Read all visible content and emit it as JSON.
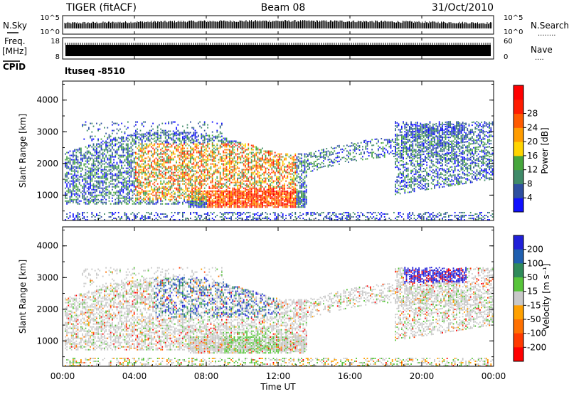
{
  "header": {
    "radar": "TIGER (fitACF)",
    "beam": "Beam 08",
    "date": "31/Oct/2010"
  },
  "side_labels": {
    "nsky": "N.Sky",
    "nsearch": "N.Search",
    "nsearch_dots": "........",
    "freq_line1": "Freq.",
    "freq_line2": "[MHz]",
    "nave": "Nave",
    "nave_dots": "....",
    "cpid": "CPID",
    "ctl_program": "ltuseq -8510"
  },
  "colors": {
    "power": [
      "#1010ff",
      "#2e4fa0",
      "#3f8a68",
      "#46a63c",
      "#ffd400",
      "#ff9c00",
      "#ff5a00",
      "#ff1c00",
      "#ff0000"
    ],
    "velocity": [
      "#2020d8",
      "#1f5fb0",
      "#2f8a5a",
      "#57c43a",
      "#c8c8c8",
      "#ffa000",
      "#ff7000",
      "#ff3a00",
      "#ff0000"
    ]
  },
  "chart_data": [
    {
      "type": "line",
      "name": "sky-noise",
      "ylabel": "N.Sky",
      "y_ticks": [
        "10^5",
        "10^0"
      ],
      "y_ticks_right": [
        "10^5",
        "10^0"
      ],
      "yscale": "log"
    },
    {
      "type": "bar",
      "name": "frequency-nave",
      "ylabel": "Freq. [MHz]",
      "ylim": [
        8,
        18
      ],
      "y_ticks": [
        "18",
        "8"
      ],
      "y_ticks_right": [
        "60",
        "0"
      ]
    },
    {
      "type": "heatmap",
      "name": "power",
      "ylabel": "Slant Range [km]",
      "y_ticks": [
        1000,
        2000,
        3000,
        4000
      ],
      "ylim": [
        200,
        4600
      ],
      "colorbar_label": "Power [dB]",
      "colorbar_ticks": [
        4,
        8,
        12,
        16,
        20,
        24,
        28
      ]
    },
    {
      "type": "heatmap",
      "name": "velocity",
      "ylabel": "Slant Range [km]",
      "y_ticks": [
        1000,
        2000,
        3000,
        4000
      ],
      "ylim": [
        200,
        4600
      ],
      "colorbar_label": "Velocity [m s⁻¹]",
      "colorbar_ticks": [
        200,
        100,
        50,
        15,
        -15,
        -50,
        -100,
        -200
      ],
      "xlabel": "Time UT",
      "x_ticks": [
        "00:00",
        "04:00",
        "08:00",
        "12:00",
        "16:00",
        "20:00",
        "00:00"
      ]
    }
  ]
}
